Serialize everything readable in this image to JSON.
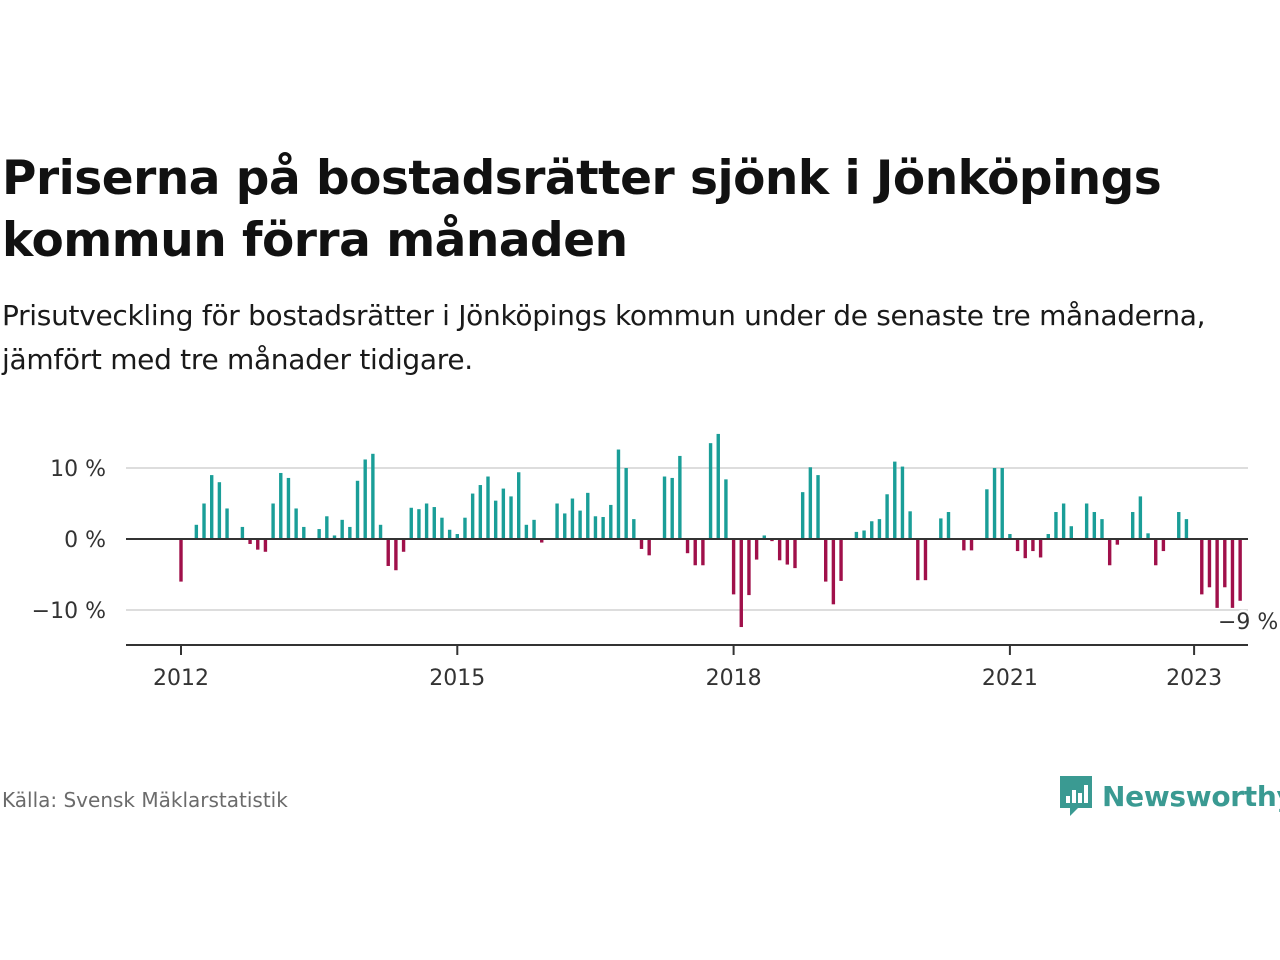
{
  "title": "Priserna på bostadsrätter sjönk i Jönköpings kommun förra månaden",
  "subtitle": "Prisutveckling för bostadsrätter i Jönköpings kommun under de senaste tre månaderna, jämfört med tre månader tidigare.",
  "source": "Källa: Svensk Mäklarstatistik",
  "brand": "Newsworthy",
  "colors": {
    "positive": "#1a9e98",
    "negative": "#a0104a",
    "grid": "#dddddd",
    "axis": "#333333",
    "brand": "#3a9a92"
  },
  "chart_data": {
    "type": "bar",
    "title": "",
    "xlabel": "",
    "ylabel": "",
    "unit": "%",
    "ylim": [
      -15,
      15
    ],
    "y_ticks": [
      {
        "value": 10,
        "label": "10 %"
      },
      {
        "value": 0,
        "label": "0 %"
      },
      {
        "value": -10,
        "label": "−10 %"
      }
    ],
    "x_ticks": [
      "2012",
      "2015",
      "2018",
      "2021",
      "2023"
    ],
    "start": "2012-01",
    "values": [
      -6.0,
      null,
      2.0,
      5.0,
      9.0,
      8.0,
      4.3,
      null,
      1.7,
      -0.7,
      -1.5,
      -1.8,
      5.0,
      9.3,
      8.6,
      4.3,
      1.7,
      null,
      1.4,
      3.2,
      0.5,
      2.7,
      1.7,
      8.2,
      11.2,
      12.0,
      2.0,
      -3.8,
      -4.4,
      -1.8,
      4.4,
      4.2,
      5.0,
      4.5,
      3.0,
      1.3,
      0.7,
      3.0,
      6.4,
      7.6,
      8.8,
      5.4,
      7.1,
      6.0,
      9.4,
      2.0,
      2.7,
      -0.5,
      null,
      5.0,
      3.6,
      5.7,
      4.0,
      6.5,
      3.2,
      3.1,
      4.8,
      12.6,
      10.0,
      2.8,
      -1.4,
      -2.3,
      null,
      8.8,
      8.6,
      11.7,
      -2.0,
      -3.7,
      -3.7,
      13.5,
      14.8,
      8.4,
      -7.8,
      -12.4,
      -7.9,
      -2.9,
      0.5,
      -0.3,
      -3.0,
      -3.6,
      -4.1,
      6.6,
      10.1,
      9.0,
      -6.0,
      -9.2,
      -5.9,
      null,
      1.0,
      1.2,
      2.5,
      2.8,
      6.3,
      10.9,
      10.2,
      3.9,
      -5.8,
      -5.8,
      null,
      2.9,
      3.8,
      null,
      -1.6,
      -1.6,
      null,
      7.0,
      10.0,
      10.0,
      0.7,
      -1.7,
      -2.7,
      -1.7,
      -2.6,
      0.7,
      3.8,
      5.0,
      1.8,
      null,
      5.0,
      3.8,
      2.8,
      -3.7,
      -0.8,
      null,
      3.8,
      6.0,
      0.8,
      -3.7,
      -1.7,
      null,
      3.8,
      2.8,
      null,
      -7.8,
      -6.8,
      -9.7,
      -6.8,
      -9.7,
      -8.7
    ],
    "last_value_label": "−9 %"
  }
}
